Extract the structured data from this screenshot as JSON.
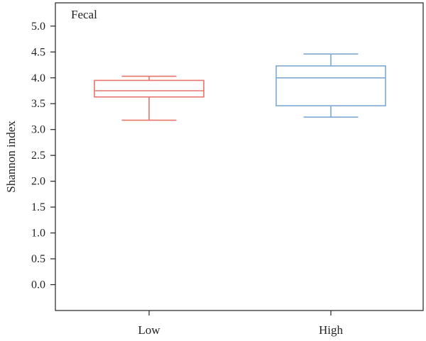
{
  "chart_data": {
    "type": "box",
    "panel_label": "Fecal",
    "ylabel": "Shannon index",
    "xlabel": "",
    "ylim": [
      -0.5,
      5.45
    ],
    "yticks": [
      "0.0",
      "0.5",
      "1.0",
      "1.5",
      "2.0",
      "2.5",
      "3.0",
      "3.5",
      "4.0",
      "4.5",
      "5.0"
    ],
    "categories": [
      "Low",
      "High"
    ],
    "boxes": [
      {
        "category": "Low",
        "min": 3.18,
        "q1": 3.63,
        "median": 3.75,
        "q3": 3.95,
        "max": 4.03,
        "color": "#e8736c"
      },
      {
        "category": "High",
        "min": 3.24,
        "q1": 3.46,
        "median": 4.0,
        "q3": 4.23,
        "max": 4.46,
        "color": "#7fa9d1"
      }
    ],
    "grid": false,
    "axis_color": "#222222"
  }
}
